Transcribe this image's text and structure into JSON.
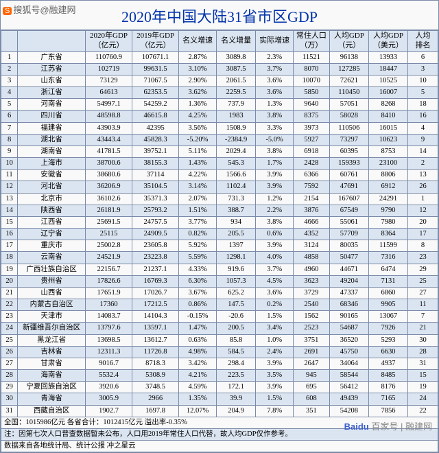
{
  "watermark_top": "搜狐号@融建网",
  "watermark_bottom_prefix": "百度",
  "watermark_bottom_suffix": "百家号 | 融建网",
  "title": "2020年中国大陆31省市区GDP",
  "columns": [
    "",
    "",
    "2020年GDP\n（亿元）",
    "2019年GDP\n（亿元）",
    "名义增速",
    "名义增量",
    "实际增速",
    "常住人口\n（万）",
    "人均GDP\n（元）",
    "人均GDP\n（美元）",
    "人均\n排名"
  ],
  "col_widths": [
    "22px",
    "90px",
    "62px",
    "62px",
    "50px",
    "52px",
    "50px",
    "48px",
    "52px",
    "52px",
    "40px"
  ],
  "rows": [
    [
      "1",
      "广东省",
      "110760.9",
      "107671.1",
      "2.87%",
      "3089.8",
      "2.3%",
      "11521",
      "96138",
      "13933",
      "6"
    ],
    [
      "2",
      "江苏省",
      "102719",
      "99631.5",
      "3.10%",
      "3087.5",
      "3.7%",
      "8070",
      "127285",
      "18447",
      "3"
    ],
    [
      "3",
      "山东省",
      "73129",
      "71067.5",
      "2.90%",
      "2061.5",
      "3.6%",
      "10070",
      "72621",
      "10525",
      "10"
    ],
    [
      "4",
      "浙江省",
      "64613",
      "62353.5",
      "3.62%",
      "2259.5",
      "3.6%",
      "5850",
      "110450",
      "16007",
      "5"
    ],
    [
      "5",
      "河南省",
      "54997.1",
      "54259.2",
      "1.36%",
      "737.9",
      "1.3%",
      "9640",
      "57051",
      "8268",
      "18"
    ],
    [
      "6",
      "四川省",
      "48598.8",
      "46615.8",
      "4.25%",
      "1983",
      "3.8%",
      "8375",
      "58028",
      "8410",
      "16"
    ],
    [
      "7",
      "福建省",
      "43903.9",
      "42395",
      "3.56%",
      "1508.9",
      "3.3%",
      "3973",
      "110506",
      "16015",
      "4"
    ],
    [
      "8",
      "湖北省",
      "43443.4",
      "45828.3",
      "-5.20%",
      "-2384.9",
      "-5.0%",
      "5927",
      "73297",
      "10623",
      "9"
    ],
    [
      "9",
      "湖南省",
      "41781.5",
      "39752.1",
      "5.11%",
      "2029.4",
      "3.8%",
      "6918",
      "60395",
      "8753",
      "14"
    ],
    [
      "10",
      "上海市",
      "38700.6",
      "38155.3",
      "1.43%",
      "545.3",
      "1.7%",
      "2428",
      "159393",
      "23100",
      "2"
    ],
    [
      "11",
      "安徽省",
      "38680.6",
      "37114",
      "4.22%",
      "1566.6",
      "3.9%",
      "6366",
      "60761",
      "8806",
      "13"
    ],
    [
      "12",
      "河北省",
      "36206.9",
      "35104.5",
      "3.14%",
      "1102.4",
      "3.9%",
      "7592",
      "47691",
      "6912",
      "26"
    ],
    [
      "13",
      "北京市",
      "36102.6",
      "35371.3",
      "2.07%",
      "731.3",
      "1.2%",
      "2154",
      "167607",
      "24291",
      "1"
    ],
    [
      "14",
      "陕西省",
      "26181.9",
      "25793.2",
      "1.51%",
      "388.7",
      "2.2%",
      "3876",
      "67549",
      "9790",
      "12"
    ],
    [
      "15",
      "江西省",
      "25691.5",
      "24757.5",
      "3.77%",
      "934",
      "3.8%",
      "4666",
      "55061",
      "7980",
      "20"
    ],
    [
      "16",
      "辽宁省",
      "25115",
      "24909.5",
      "0.82%",
      "205.5",
      "0.6%",
      "4352",
      "57709",
      "8364",
      "17"
    ],
    [
      "17",
      "重庆市",
      "25002.8",
      "23605.8",
      "5.92%",
      "1397",
      "3.9%",
      "3124",
      "80035",
      "11599",
      "8"
    ],
    [
      "18",
      "云南省",
      "24521.9",
      "23223.8",
      "5.59%",
      "1298.1",
      "4.0%",
      "4858",
      "50477",
      "7316",
      "23"
    ],
    [
      "19",
      "广西壮族自治区",
      "22156.7",
      "21237.1",
      "4.33%",
      "919.6",
      "3.7%",
      "4960",
      "44671",
      "6474",
      "29"
    ],
    [
      "20",
      "贵州省",
      "17826.6",
      "16769.3",
      "6.30%",
      "1057.3",
      "4.5%",
      "3623",
      "49204",
      "7131",
      "25"
    ],
    [
      "21",
      "山西省",
      "17651.9",
      "17026.7",
      "3.67%",
      "625.2",
      "3.6%",
      "3729",
      "47337",
      "6860",
      "27"
    ],
    [
      "22",
      "内蒙古自治区",
      "17360",
      "17212.5",
      "0.86%",
      "147.5",
      "0.2%",
      "2540",
      "68346",
      "9905",
      "11"
    ],
    [
      "23",
      "天津市",
      "14083.7",
      "14104.3",
      "-0.15%",
      "-20.6",
      "1.5%",
      "1562",
      "90165",
      "13067",
      "7"
    ],
    [
      "24",
      "新疆维吾尔自治区",
      "13797.6",
      "13597.1",
      "1.47%",
      "200.5",
      "3.4%",
      "2523",
      "54687",
      "7926",
      "21"
    ],
    [
      "25",
      "黑龙江省",
      "13698.5",
      "13612.7",
      "0.63%",
      "85.8",
      "1.0%",
      "3751",
      "36520",
      "5293",
      "30"
    ],
    [
      "26",
      "吉林省",
      "12311.3",
      "11726.8",
      "4.98%",
      "584.5",
      "2.4%",
      "2691",
      "45750",
      "6630",
      "28"
    ],
    [
      "27",
      "甘肃省",
      "9016.7",
      "8718.3",
      "3.42%",
      "298.4",
      "3.9%",
      "2647",
      "34064",
      "4937",
      "31"
    ],
    [
      "28",
      "海南省",
      "5532.4",
      "5308.9",
      "4.21%",
      "223.5",
      "3.5%",
      "945",
      "58544",
      "8485",
      "15"
    ],
    [
      "29",
      "宁夏回族自治区",
      "3920.6",
      "3748.5",
      "4.59%",
      "172.1",
      "3.9%",
      "695",
      "56412",
      "8176",
      "19"
    ],
    [
      "30",
      "青海省",
      "3005.9",
      "2966",
      "1.35%",
      "39.9",
      "1.5%",
      "608",
      "49439",
      "7165",
      "24"
    ],
    [
      "31",
      "西藏自治区",
      "1902.7",
      "1697.8",
      "12.07%",
      "204.9",
      "7.8%",
      "351",
      "54208",
      "7856",
      "22"
    ]
  ],
  "footer_lines": [
    "全国：1015986亿元          各省合计：1012415亿元          溢出率-0.35%",
    "注：因第七次人口普查数据暂未公布，人口用2019年常住人口代替，故人均GDP仅作参考。",
    "数据来自各地统计局、统计公报                                                                冲之星云"
  ],
  "style": {
    "type": "table",
    "title_color": "#0033aa",
    "title_fontsize": 22,
    "header_bg": "#dbe5f1",
    "row_odd_bg": "#f9f9f9",
    "row_even_bg": "#dbe5f1",
    "border_color": "#7a8aa8",
    "cell_fontsize": 10.5,
    "font_family": "SimSun"
  }
}
